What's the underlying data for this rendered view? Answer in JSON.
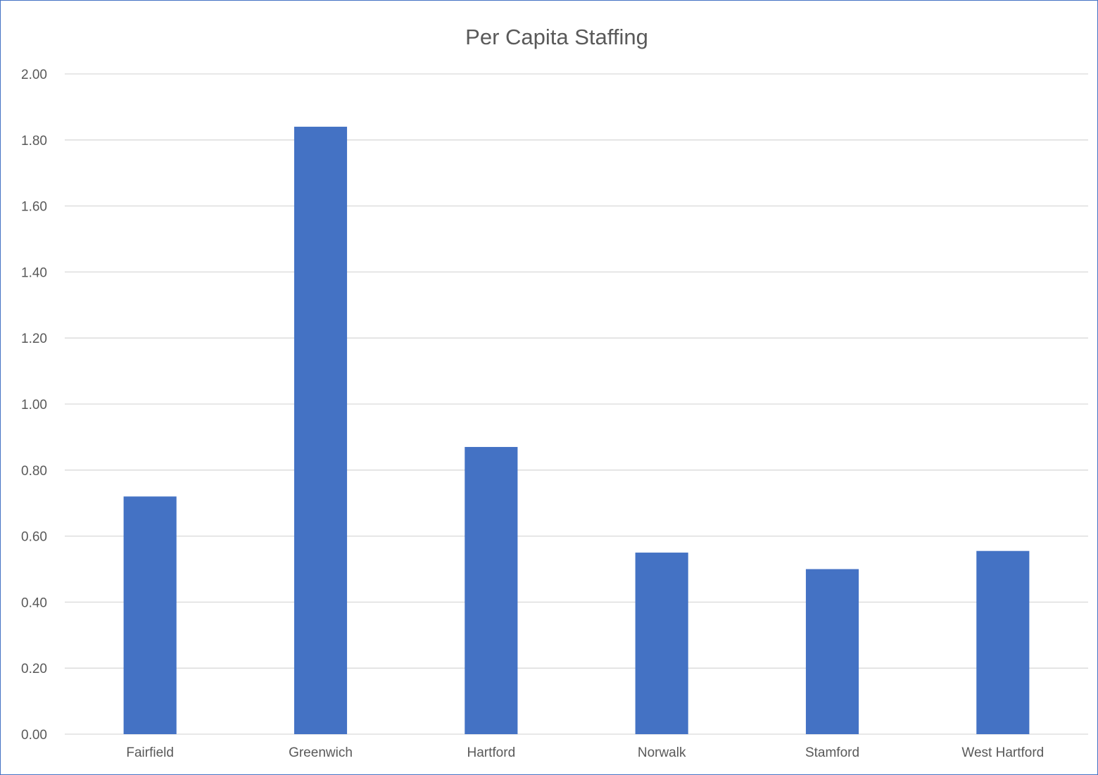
{
  "chart_data": {
    "type": "bar",
    "title": "Per Capita Staffing",
    "xlabel": "",
    "ylabel": "",
    "categories": [
      "Fairfield",
      "Greenwich",
      "Hartford",
      "Norwalk",
      "Stamford",
      "West Hartford"
    ],
    "values": [
      0.72,
      1.84,
      0.87,
      0.55,
      0.5,
      0.555
    ],
    "ylim": [
      0,
      2
    ],
    "yticks": [
      "0.00",
      "0.20",
      "0.40",
      "0.60",
      "0.80",
      "1.00",
      "1.20",
      "1.40",
      "1.60",
      "1.80",
      "2.00"
    ],
    "grid": true,
    "legend": "none",
    "bar_color": "#4472c4",
    "frame_color": "#4472c4"
  }
}
